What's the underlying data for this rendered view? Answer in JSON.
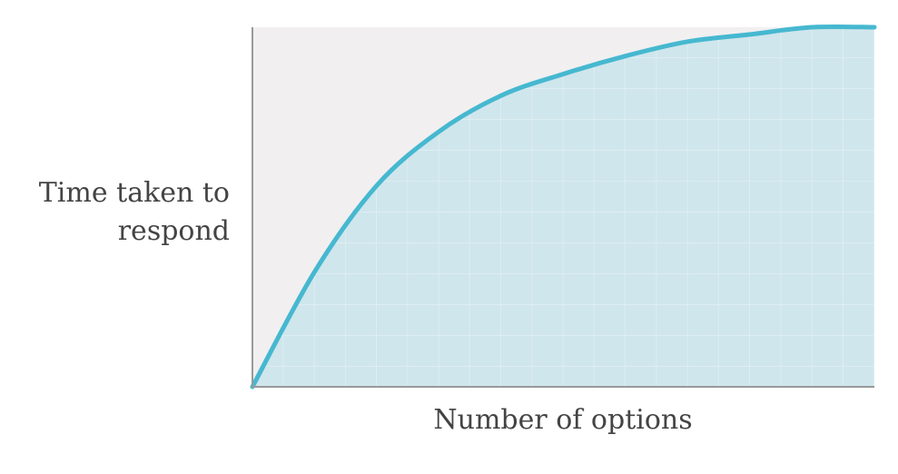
{
  "chart_data": {
    "type": "area",
    "xlabel": "Number of options",
    "ylabel": [
      "Time taken to",
      "respond"
    ],
    "x": [
      0,
      1,
      2,
      3,
      4,
      5,
      6,
      7,
      8,
      9,
      10
    ],
    "values": [
      0,
      32,
      56,
      71,
      81,
      87,
      92,
      96,
      98,
      100,
      100
    ],
    "xlim": [
      0,
      10
    ],
    "ylim": [
      0,
      100
    ],
    "color": "#46b8d0",
    "fill": "#cfe6ec",
    "grid": true
  }
}
